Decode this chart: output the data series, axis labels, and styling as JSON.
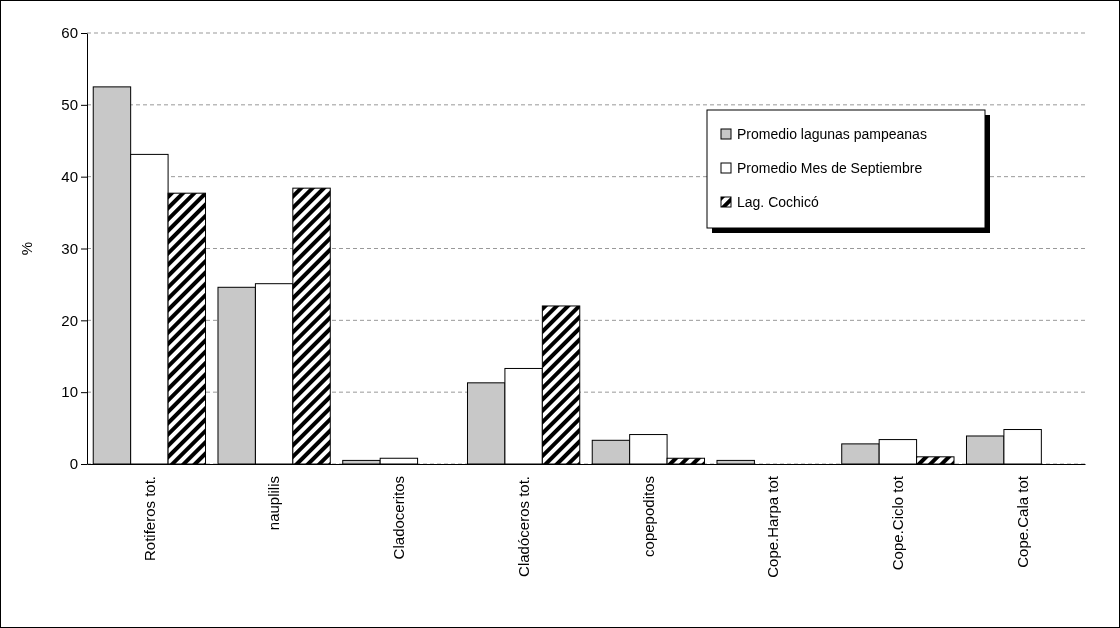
{
  "chart_data": {
    "type": "bar",
    "ylabel": "%",
    "categories": [
      "Rotiferos tot.",
      "nauplilis",
      "Cladoceritos",
      "Cladóceros tot.",
      "copepoditos",
      "Cope.Harpa tot",
      "Cope.Ciclo tot",
      "Cope.Cala tot"
    ],
    "series": [
      {
        "name": "Promedio lagunas pampeanas",
        "color": "#c8c8c8",
        "values": [
          52.5,
          24.6,
          0.5,
          11.3,
          3.3,
          0.5,
          2.8,
          3.9
        ]
      },
      {
        "name": "Promedio Mes de Septiembre",
        "color": "#ffffff",
        "values": [
          43.1,
          25.1,
          0.8,
          13.3,
          4.1,
          0,
          3.4,
          4.8
        ]
      },
      {
        "name": "Lag. Cochicó",
        "color": "#000000",
        "values": [
          37.7,
          38.4,
          0,
          22,
          0.8,
          0,
          1,
          0
        ]
      }
    ],
    "ylim": [
      0,
      60
    ],
    "yticks": [
      0,
      10,
      20,
      30,
      40,
      50,
      60
    ],
    "grid": "y",
    "legend": "top right"
  }
}
